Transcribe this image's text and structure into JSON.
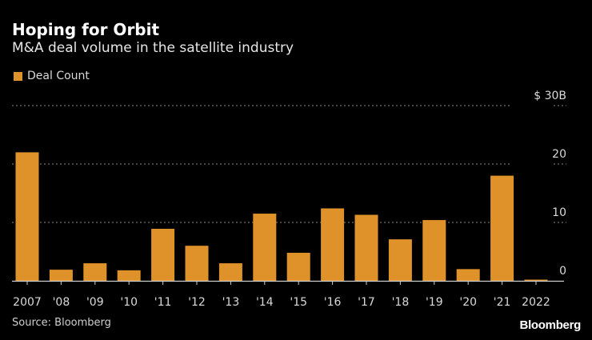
{
  "header": {
    "title": "Hoping for Orbit",
    "subtitle": "M&A deal volume in the satellite industry"
  },
  "footer": {
    "source": "Source: Bloomberg",
    "brand": "Bloomberg"
  },
  "colors": {
    "bar": "#e0922a",
    "background": "#000000",
    "grid": "#8a8a8a",
    "text": "#d9d9d9"
  },
  "chart_data": {
    "type": "bar",
    "title": "Hoping for Orbit",
    "subtitle": "M&A deal volume in the satellite industry",
    "xlabel": "",
    "ylabel": "",
    "legend": {
      "entries": [
        "Deal Count"
      ],
      "placement": "top-left"
    },
    "categories": [
      "2007",
      "'08",
      "'09",
      "'10",
      "'11",
      "'12",
      "'13",
      "'14",
      "'15",
      "'16",
      "'17",
      "'18",
      "'19",
      "'20",
      "'21",
      "2022"
    ],
    "series": [
      {
        "name": "Deal Count",
        "values": [
          22,
          1.9,
          3.0,
          1.8,
          8.9,
          6.0,
          3.0,
          11.5,
          4.8,
          12.4,
          11.3,
          7.1,
          10.4,
          2.0,
          18.0,
          0.2
        ]
      }
    ],
    "ylim": [
      0,
      30
    ],
    "yticks": [
      0,
      10,
      20,
      30
    ],
    "ytick_labels": [
      "0",
      "10",
      "20",
      "$ 30B"
    ],
    "y_axis_side": "right",
    "grid": true
  }
}
